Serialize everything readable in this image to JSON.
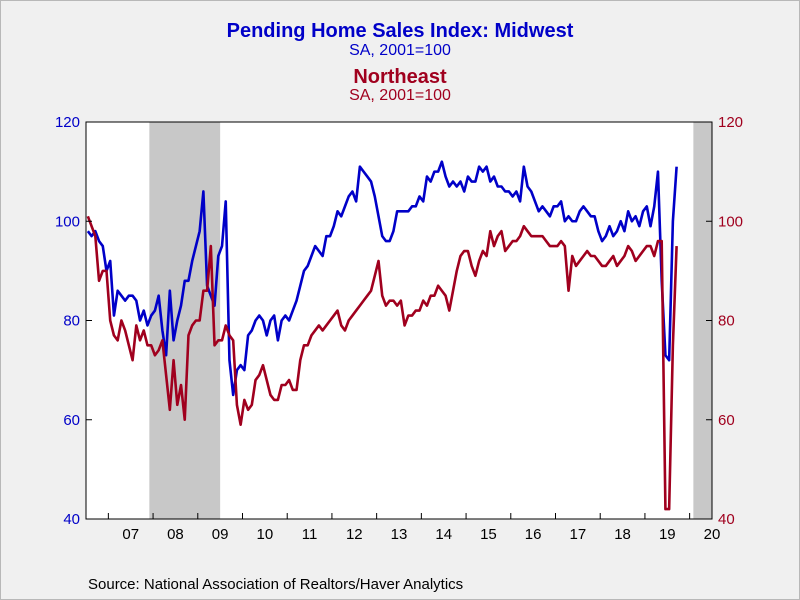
{
  "titles": {
    "line1": "Pending Home Sales Index: Midwest",
    "line2": "SA, 2001=100",
    "line3": "Northeast",
    "line4": "SA, 2001=100"
  },
  "source": "Source:  National Association of Realtors/Haver Analytics",
  "colors": {
    "midwest": "#0000c8",
    "northeast": "#a0001e",
    "recession": "#c8c8c8",
    "background": "#f0f0f0",
    "plot": "#ffffff"
  },
  "chart_data": {
    "type": "line",
    "x_unit": "month",
    "xlim": [
      "2006-07",
      "2020-07"
    ],
    "x_tick_labels": [
      "07",
      "08",
      "09",
      "10",
      "11",
      "12",
      "13",
      "14",
      "15",
      "16",
      "17",
      "18",
      "19",
      "20"
    ],
    "y_left": {
      "min": 40,
      "max": 120,
      "ticks": [
        40,
        60,
        80,
        100,
        120
      ]
    },
    "y_right": {
      "min": 40,
      "max": 120,
      "ticks": [
        40,
        60,
        80,
        100,
        120
      ]
    },
    "recession_shading": [
      {
        "start": "2007-12",
        "end": "2009-06"
      },
      {
        "start": "2020-02",
        "end": "2020-06"
      }
    ],
    "series": [
      {
        "name": "Pending Home Sales Index: Midwest",
        "axis": "left",
        "color": "#0000c8",
        "start": "2006-07",
        "values": [
          98,
          97,
          98,
          96,
          95,
          90,
          92,
          81,
          86,
          85,
          84,
          85,
          85,
          84,
          80,
          82,
          79,
          81,
          82,
          85,
          78,
          73,
          86,
          76,
          80,
          83,
          88,
          88,
          92,
          95,
          98,
          106,
          87,
          85,
          83,
          93,
          95,
          104,
          72,
          65,
          70,
          71,
          70,
          77,
          78,
          80,
          81,
          80,
          77,
          80,
          81,
          76,
          80,
          81,
          80,
          82,
          84,
          87,
          90,
          91,
          93,
          95,
          94,
          93,
          97,
          97,
          99,
          102,
          101,
          103,
          105,
          106,
          104,
          111,
          110,
          109,
          108,
          105,
          101,
          97,
          96,
          96,
          98,
          102,
          102,
          102,
          102,
          103,
          103,
          105,
          104,
          109,
          108,
          110,
          110,
          112,
          109,
          107,
          108,
          107,
          108,
          106,
          109,
          108,
          108,
          111,
          110,
          111,
          108,
          109,
          107,
          107,
          106,
          106,
          105,
          106,
          104,
          111,
          107,
          106,
          104,
          102,
          103,
          102,
          101,
          103,
          103,
          104,
          100,
          101,
          100,
          100,
          102,
          103,
          102,
          101,
          101,
          98,
          96,
          97,
          99,
          97,
          98,
          100,
          98,
          102,
          100,
          101,
          99,
          102,
          103,
          99,
          103,
          110,
          88,
          73,
          72,
          100,
          111
        ]
      },
      {
        "name": "Northeast",
        "axis": "right",
        "color": "#a0001e",
        "start": "2006-07",
        "values": [
          101,
          99,
          97,
          88,
          90,
          90,
          80,
          77,
          76,
          80,
          78,
          75,
          72,
          79,
          76,
          78,
          75,
          75,
          73,
          74,
          76,
          69,
          62,
          72,
          63,
          67,
          60,
          77,
          79,
          80,
          80,
          86,
          86,
          95,
          75,
          76,
          76,
          79,
          77,
          76,
          63,
          59,
          64,
          62,
          63,
          68,
          69,
          71,
          68,
          65,
          64,
          64,
          67,
          67,
          68,
          66,
          66,
          72,
          75,
          75,
          77,
          78,
          79,
          78,
          79,
          80,
          81,
          82,
          79,
          78,
          80,
          81,
          82,
          83,
          84,
          85,
          86,
          89,
          92,
          85,
          83,
          84,
          84,
          83,
          84,
          79,
          81,
          81,
          82,
          82,
          84,
          83,
          85,
          85,
          87,
          86,
          85,
          82,
          86,
          90,
          93,
          94,
          94,
          91,
          89,
          92,
          94,
          93,
          98,
          95,
          97,
          98,
          94,
          95,
          96,
          96,
          97,
          99,
          98,
          97,
          97,
          97,
          97,
          96,
          95,
          95,
          95,
          96,
          95,
          86,
          93,
          91,
          92,
          93,
          94,
          93,
          93,
          92,
          91,
          91,
          92,
          93,
          91,
          92,
          93,
          95,
          94,
          92,
          93,
          94,
          95,
          95,
          93,
          96,
          96,
          42,
          42,
          75,
          95
        ]
      }
    ]
  }
}
